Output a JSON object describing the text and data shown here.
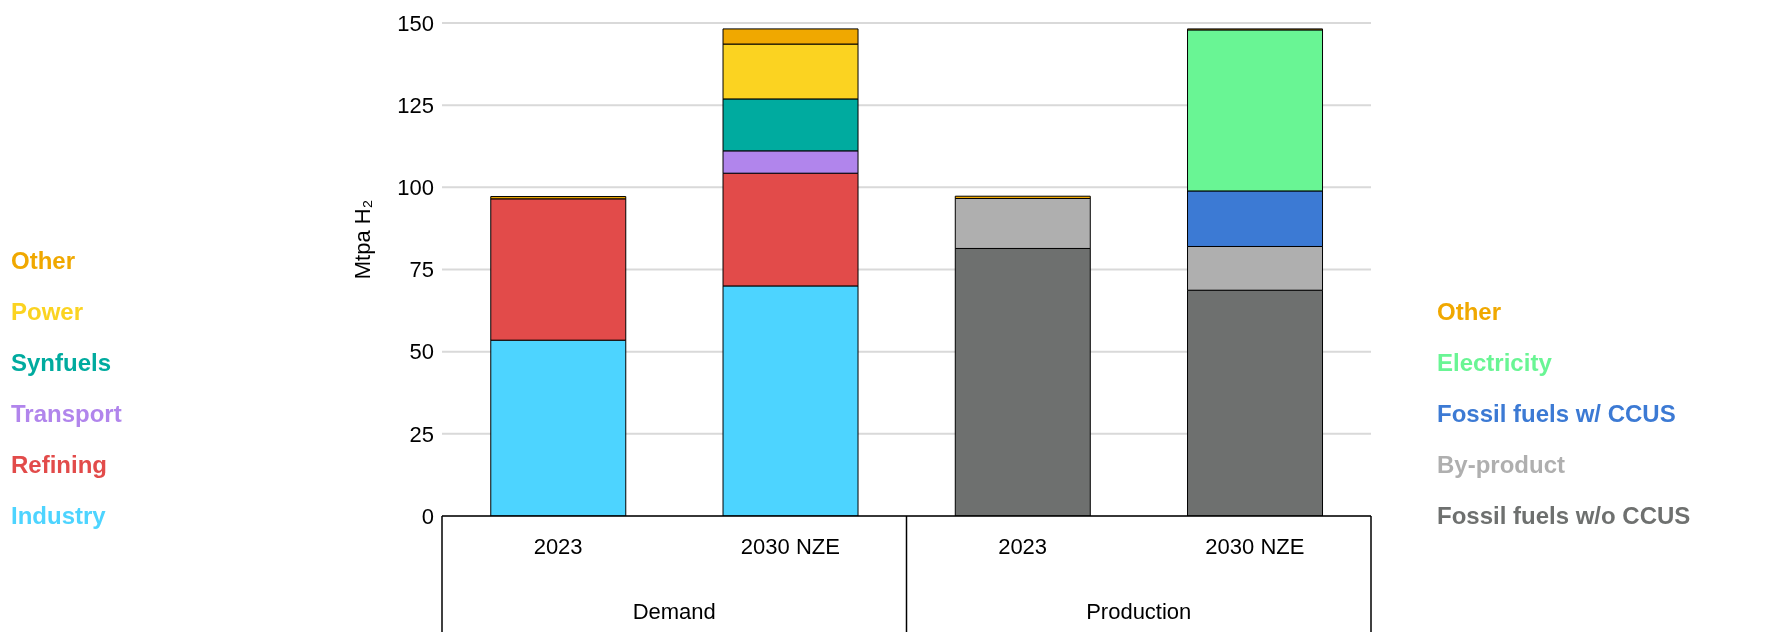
{
  "chart_data": {
    "type": "bar",
    "stacked": true,
    "ylabel": "Mtpa H₂",
    "categories": [
      "2023",
      "2030 NZE",
      "2023",
      "2030 NZE"
    ],
    "annotations": [
      "Demand",
      "Production"
    ],
    "ylim": [
      0,
      150
    ],
    "yticks": [
      0,
      25,
      50,
      75,
      100,
      125,
      150
    ],
    "grid": "y",
    "series": [
      {
        "name": "Industry",
        "color": "#4dd4ff",
        "values": [
          53.5,
          70,
          null,
          null
        ]
      },
      {
        "name": "Refining",
        "color": "#e24b4a",
        "values": [
          43,
          34.3,
          null,
          null
        ]
      },
      {
        "name": "Transport",
        "color": "#b185ec",
        "values": [
          null,
          6.8,
          null,
          null
        ]
      },
      {
        "name": "Synfuels",
        "color": "#00ab9f",
        "values": [
          null,
          15.8,
          null,
          null
        ]
      },
      {
        "name": "Power",
        "color": "#fbd321",
        "values": [
          null,
          16.7,
          null,
          null
        ]
      },
      {
        "name": "Fossil fuels w/o CCUS",
        "color": "#6e706f",
        "values": [
          null,
          null,
          81.4,
          68.7
        ]
      },
      {
        "name": "By-product",
        "color": "#afafaf",
        "values": [
          null,
          null,
          15.2,
          13.3
        ]
      },
      {
        "name": "Fossil fuels w/ CCUS",
        "color": "#3c7ad4",
        "values": [
          null,
          null,
          null,
          16.9
        ]
      },
      {
        "name": "Electricity",
        "color": "#69f594",
        "values": [
          null,
          null,
          null,
          49
        ]
      },
      {
        "name": "Other",
        "color": "#f0a800",
        "values": [
          0.7,
          4.6,
          0.7,
          0.3
        ]
      }
    ]
  }
}
